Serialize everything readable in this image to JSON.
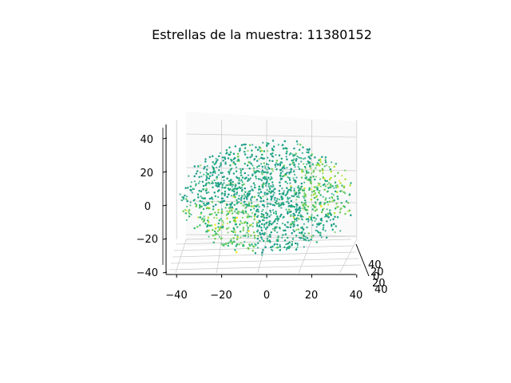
{
  "chart_data": {
    "type": "scatter",
    "projection": "3d",
    "title": "Estrellas de la muestra: 11380152",
    "xlabel": "",
    "ylabel": "",
    "zlabel": "",
    "xlim": [
      -45,
      45
    ],
    "ylim": [
      -45,
      45
    ],
    "zlim": [
      -42,
      48
    ],
    "x_ticks": [
      "−40",
      "−20",
      "0",
      "20",
      "40"
    ],
    "y_ticks": [
      "40",
      "20",
      "0",
      "20",
      "40"
    ],
    "z_ticks": [
      "−40",
      "−20",
      "0",
      "20",
      "40"
    ],
    "grid": true,
    "colormap": "viridis",
    "point_colors": [
      "#1f9e89",
      "#26ad81",
      "#35b779",
      "#6ece58",
      "#b5de2b",
      "#fde725"
    ],
    "series": [
      {
        "description_shape": "roughly spherical cloud of stars",
        "center": [
          0,
          0,
          5
        ],
        "radius": 37,
        "approx_points_shown": 6000
      }
    ]
  }
}
